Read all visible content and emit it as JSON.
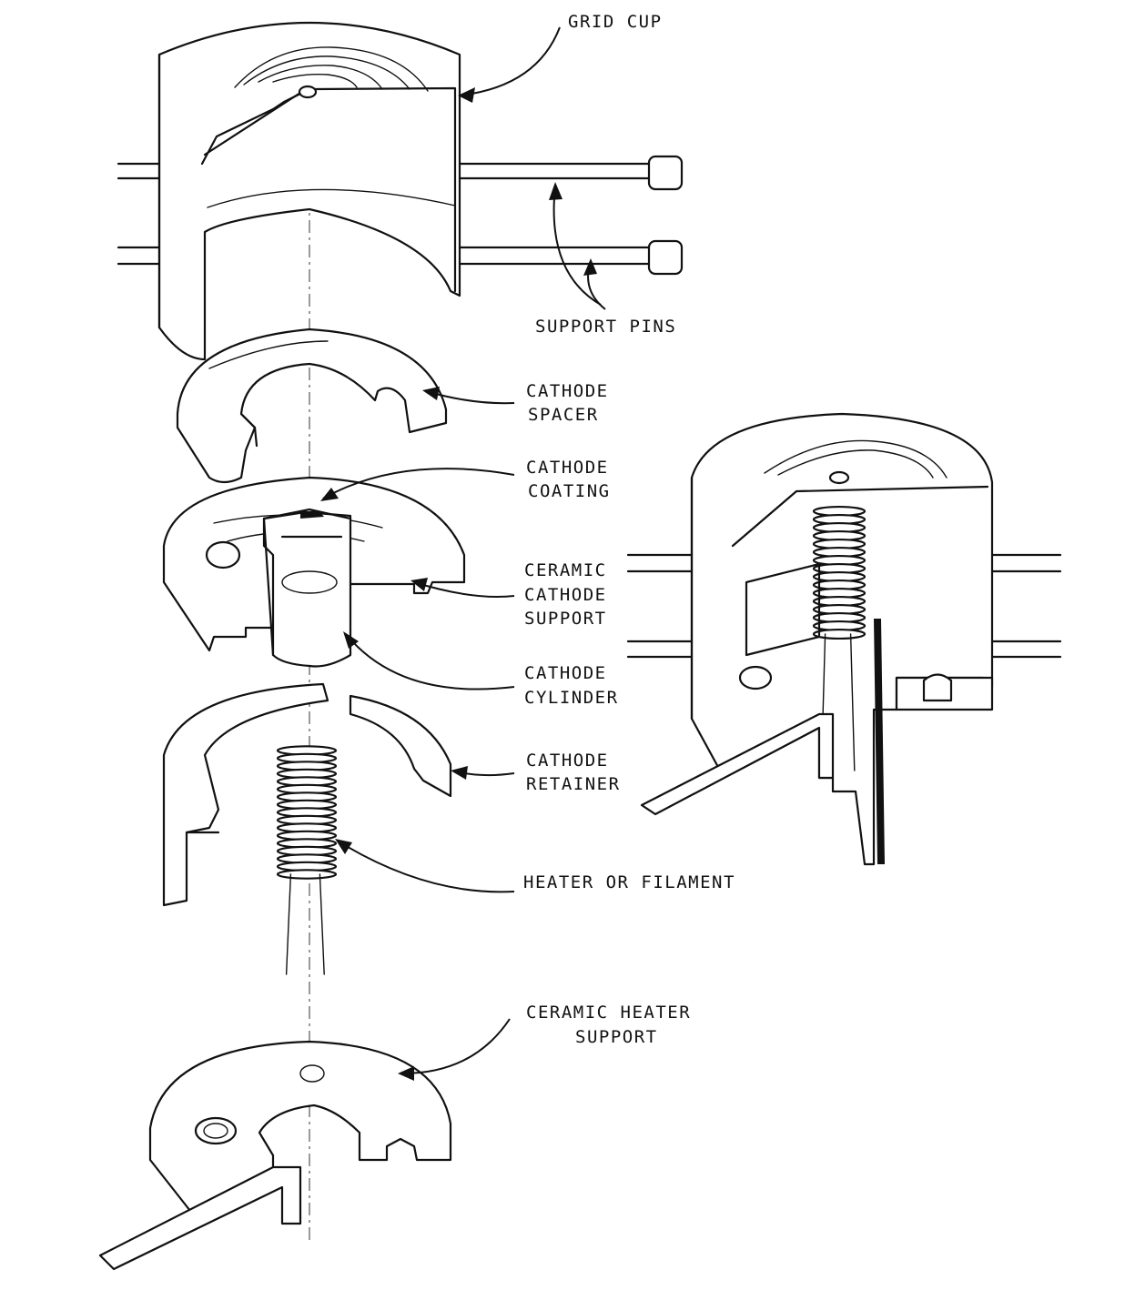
{
  "labels": {
    "grid_cup": "GRID CUP",
    "support_pins": "SUPPORT PINS",
    "cathode_spacer": [
      "CATHODE",
      "SPACER"
    ],
    "cathode_coating": [
      "CATHODE",
      "COATING"
    ],
    "ceramic_cathode_support": [
      "CERAMIC",
      "CATHODE",
      "SUPPORT"
    ],
    "cathode_cylinder": [
      "CATHODE",
      "CYLINDER"
    ],
    "cathode_retainer": [
      "CATHODE",
      "RETAINER"
    ],
    "heater_or_filament": "HEATER OR FILAMENT",
    "ceramic_heater_support": [
      "CERAMIC HEATER",
      "SUPPORT"
    ]
  },
  "colors": {
    "ink": "#111111",
    "paper": "#ffffff"
  }
}
